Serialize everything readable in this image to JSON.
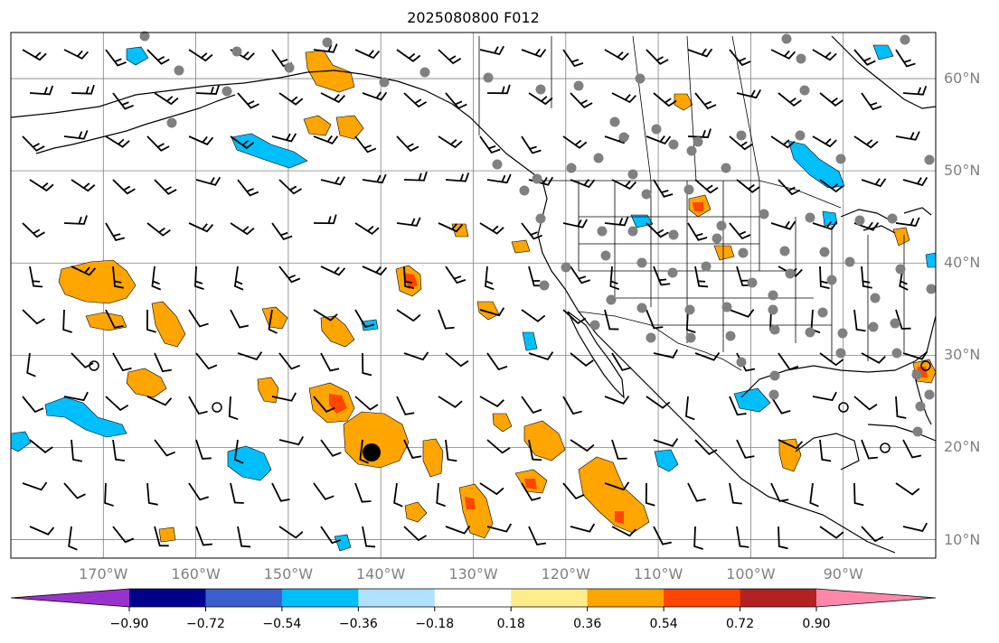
{
  "title": "2025080800 F012",
  "map": {
    "lon_range": [
      -180,
      -80
    ],
    "lat_range": [
      8,
      65
    ],
    "lat_labels": [
      "60°N",
      "50°N",
      "40°N",
      "30°N",
      "20°N",
      "10°N"
    ],
    "lon_labels": [
      "170°W",
      "160°W",
      "150°W",
      "140°W",
      "130°W",
      "120°W",
      "110°W",
      "100°W",
      "90°W"
    ],
    "grid": true,
    "colors": {
      "ocean": "#ffffff",
      "coast": "#000000",
      "grid": "#808080",
      "station": "#808080"
    }
  },
  "colorbar": {
    "orientation": "horizontal",
    "extend": "both",
    "tick_labels": [
      "−0.90",
      "−0.72",
      "−0.54",
      "−0.36",
      "−0.18",
      "0.18",
      "0.36",
      "0.54",
      "0.72",
      "0.90"
    ],
    "colors": [
      "#9932CC",
      "#00008B",
      "#3A5FCD",
      "#00BFFF",
      "#B0E2FF",
      "#FFFFFF",
      "#FFEC8B",
      "#FFA500",
      "#FF4500",
      "#B22222",
      "#FF88AA"
    ]
  }
}
